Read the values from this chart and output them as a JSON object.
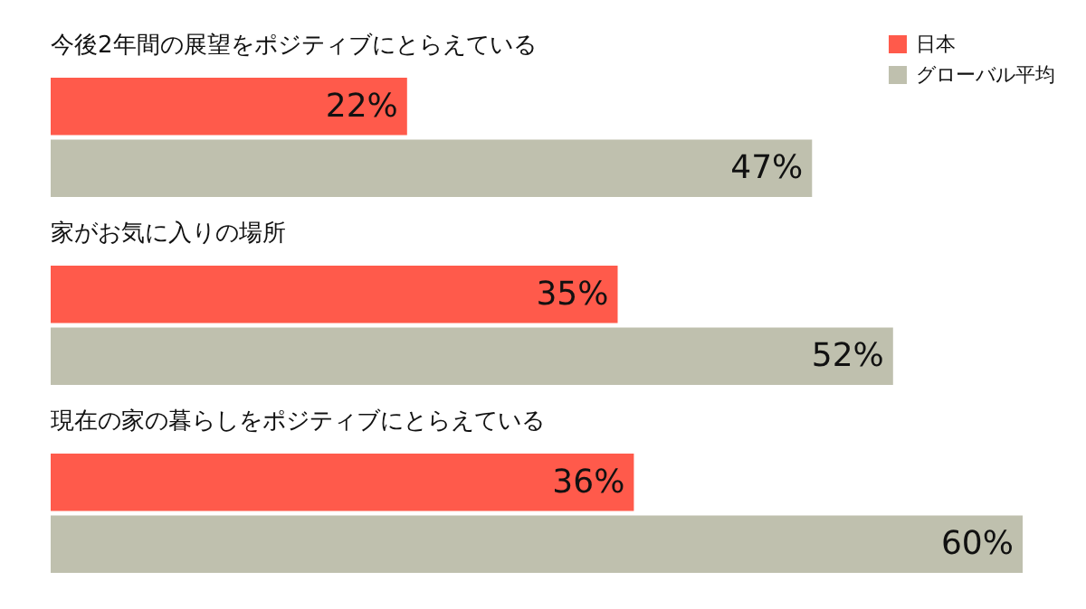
{
  "chart_data": {
    "type": "bar",
    "orientation": "horizontal",
    "categories": [
      "今後2年間の展望をポジティブにとらえている",
      "家がお気に入りの場所",
      "現在の家の暮らしをポジティブにとらえている"
    ],
    "series": [
      {
        "name": "日本",
        "color": "#ff5a4b",
        "values": [
          22,
          35,
          36
        ],
        "value_labels": [
          "22%",
          "35%",
          "36%"
        ]
      },
      {
        "name": "グローバル平均",
        "color": "#bfc0ae",
        "values": [
          47,
          52,
          60
        ],
        "value_labels": [
          "47%",
          "52%",
          "60%"
        ]
      }
    ],
    "legend": "top right"
  }
}
